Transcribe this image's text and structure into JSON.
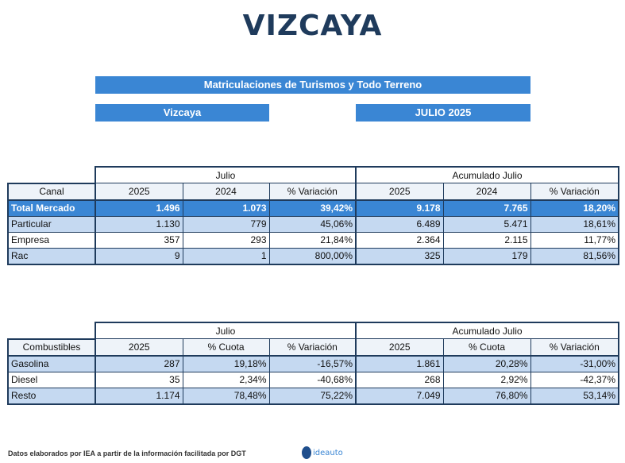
{
  "title": "VIZCAYA",
  "banner_main": "Matriculaciones de Turismos y Todo Terreno",
  "banner_region": "Vizcaya",
  "banner_period": "JULIO 2025",
  "table1": {
    "group_month": "Julio",
    "group_acc": "Acumulado Julio",
    "headers": [
      "Canal",
      "2025",
      "2024",
      "% Variación",
      "2025",
      "2024",
      "% Variación"
    ],
    "rows": [
      [
        "Total Mercado",
        "1.496",
        "1.073",
        "39,42%",
        "9.178",
        "7.765",
        "18,20%"
      ],
      [
        "Particular",
        "1.130",
        "779",
        "45,06%",
        "6.489",
        "5.471",
        "18,61%"
      ],
      [
        "Empresa",
        "357",
        "293",
        "21,84%",
        "2.364",
        "2.115",
        "11,77%"
      ],
      [
        "Rac",
        "9",
        "1",
        "800,00%",
        "325",
        "179",
        "81,56%"
      ]
    ]
  },
  "table2": {
    "group_month": "Julio",
    "group_acc": "Acumulado Julio",
    "headers": [
      "Combustibles",
      "2025",
      "% Cuota",
      "% Variación",
      "2025",
      "% Cuota",
      "% Variación"
    ],
    "rows": [
      [
        "Gasolina",
        "287",
        "19,18%",
        "-16,57%",
        "1.861",
        "20,28%",
        "-31,00%"
      ],
      [
        "Diesel",
        "35",
        "2,34%",
        "-40,68%",
        "268",
        "2,92%",
        "-42,37%"
      ],
      [
        "Resto",
        "1.174",
        "78,48%",
        "75,22%",
        "7.049",
        "76,80%",
        "53,14%"
      ]
    ]
  },
  "footer": "Datos elaborados por IEA a partir de la información facilitada por DGT",
  "logo_text": "ideauto",
  "colors": {
    "accent": "#3a86d4",
    "light_row": "#c5d9f1",
    "dark": "#1f3b5c"
  }
}
